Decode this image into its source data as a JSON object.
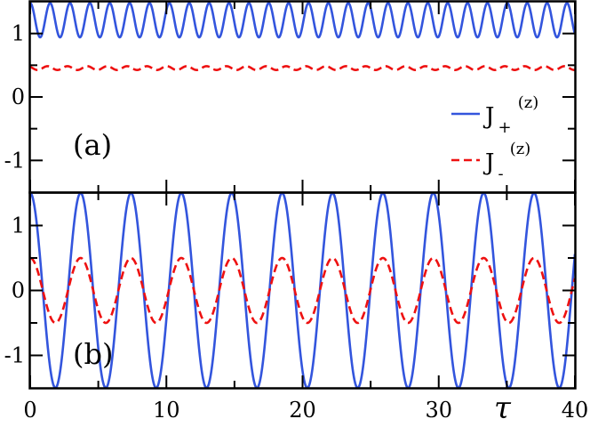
{
  "chart_data": [
    {
      "type": "line",
      "panel_label": "(a)",
      "xlim": [
        0,
        40
      ],
      "ylim": [
        -1.5,
        1.5
      ],
      "yticks": [
        -1,
        0,
        1
      ],
      "ytick_labels": [
        "-1",
        "0",
        "1"
      ],
      "legend": {
        "position": "center-right",
        "entries": [
          {
            "main": "J",
            "subscript": "+",
            "superscript": "(z)",
            "color": "#3355dd",
            "style": "solid"
          },
          {
            "main": "J",
            "subscript": "-",
            "superscript": "(z)",
            "color": "#ee1111",
            "style": "dashed"
          }
        ]
      },
      "series": [
        {
          "color": "#3355dd",
          "style": "solid",
          "model": "oscillation",
          "center": 1.21,
          "amplitude": 0.27,
          "period": 1.46,
          "phase": 0.0
        },
        {
          "color": "#ee1111",
          "style": "dashed",
          "model": "oscillation",
          "center": 0.455,
          "amplitude": 0.03,
          "period": 1.46,
          "phase": 0.8
        }
      ]
    },
    {
      "type": "line",
      "panel_label": "(b)",
      "xlim": [
        0,
        40
      ],
      "ylim": [
        -1.5,
        1.5
      ],
      "xlabel": "τ",
      "xticks": [
        0,
        10,
        20,
        30,
        40
      ],
      "xtick_labels": [
        "0",
        "10",
        "20",
        "30",
        "40"
      ],
      "yticks": [
        -1,
        0,
        1
      ],
      "ytick_labels": [
        "-1",
        "0",
        "1"
      ],
      "series": [
        {
          "color": "#3355dd",
          "style": "solid",
          "model": "oscillation",
          "center": 0.0,
          "amplitude": 1.5,
          "period": 3.7,
          "phase": 0.0
        },
        {
          "color": "#ee1111",
          "style": "dashed",
          "model": "oscillation",
          "center": 0.0,
          "amplitude": 0.5,
          "period": 3.7,
          "phase": 0.0
        }
      ]
    }
  ]
}
